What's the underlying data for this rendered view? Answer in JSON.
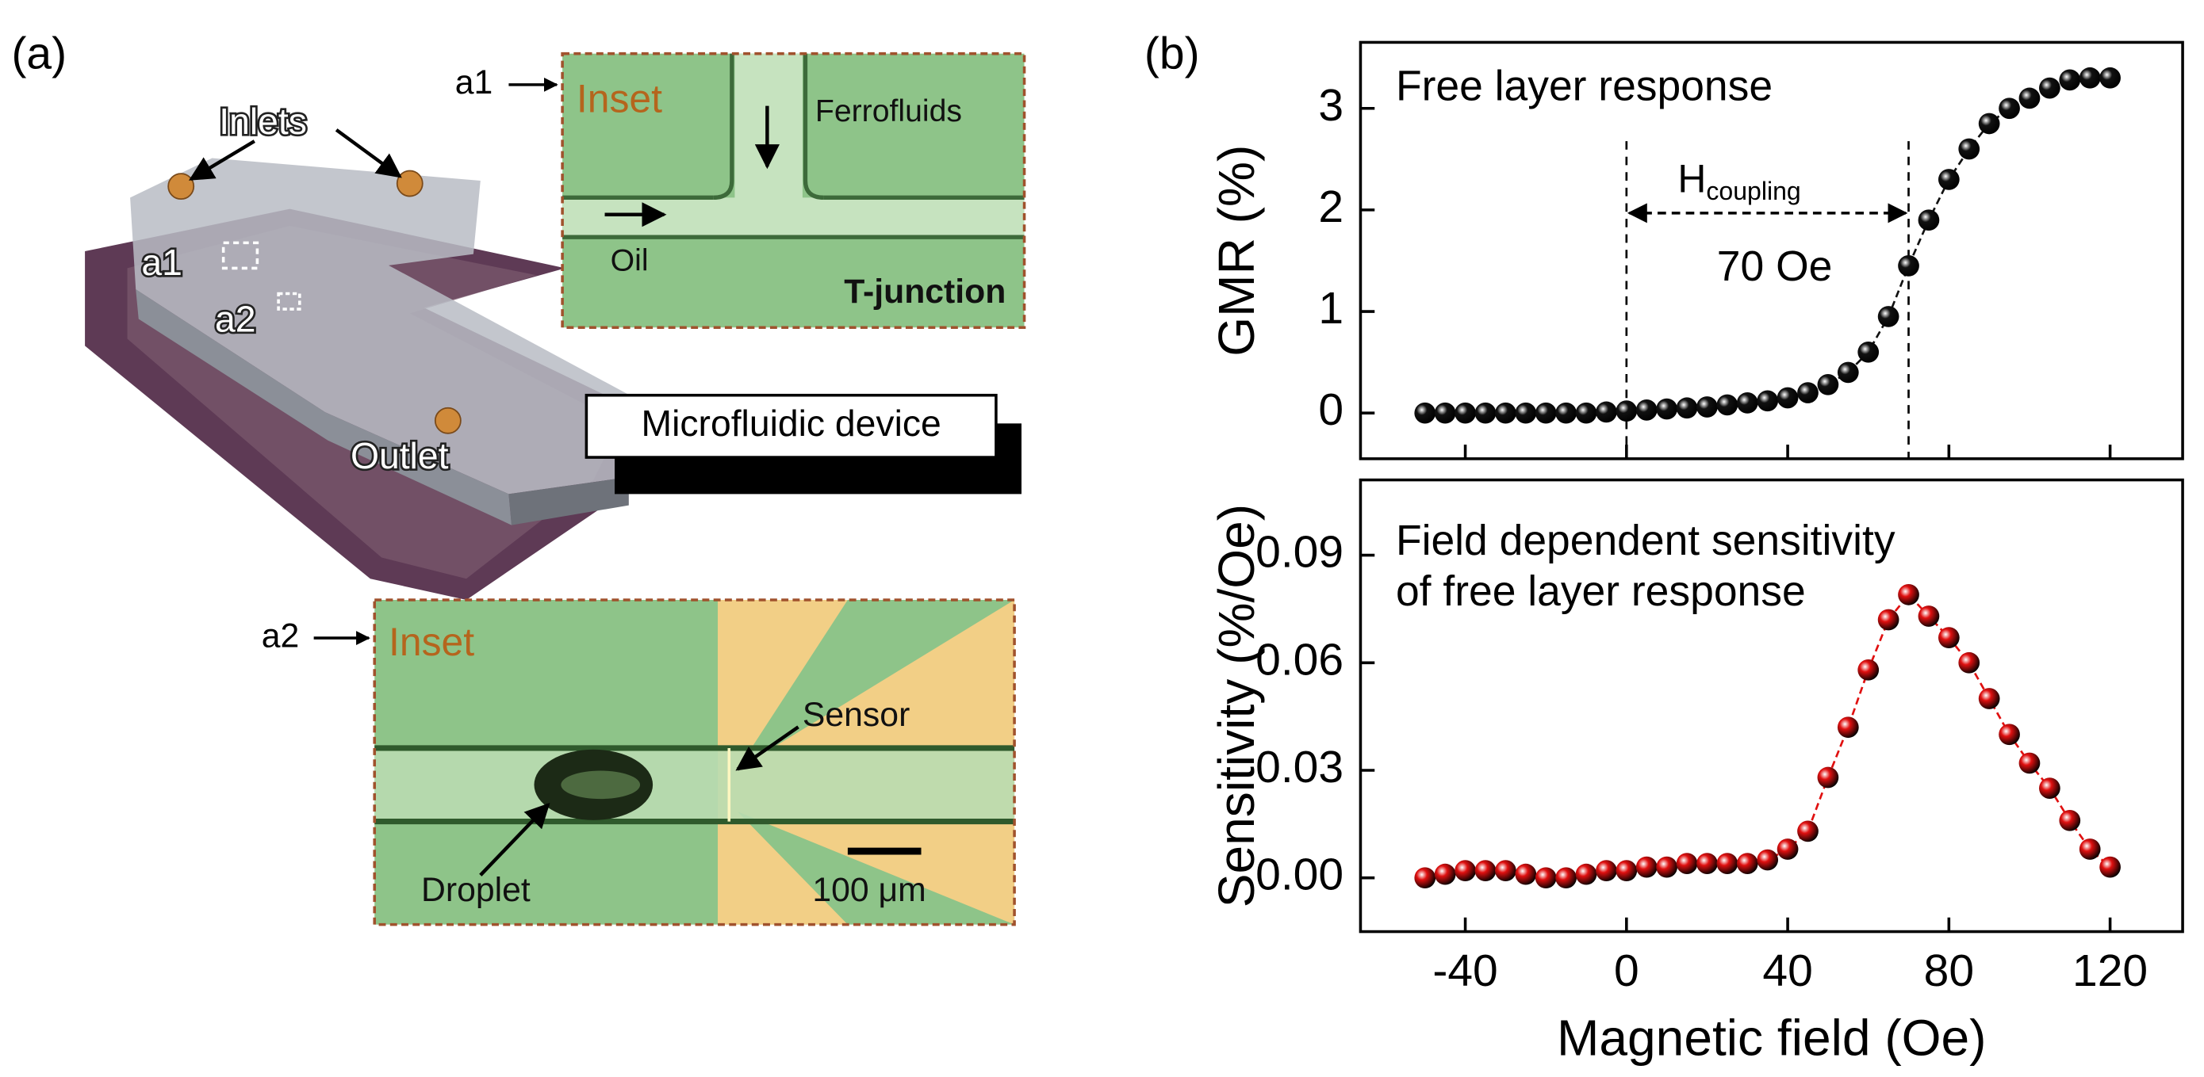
{
  "panel_a": {
    "label": "(a)",
    "photo_labels": {
      "inlets": "Inlets",
      "a1": "a1",
      "a2": "a2",
      "outlet": "Outlet"
    },
    "device_label": "Microfluidic device",
    "inset_a1": {
      "pointer": "a1",
      "title": "Inset",
      "ferrofluids": "Ferrofluids",
      "oil": "Oil",
      "junction": "T-junction"
    },
    "inset_a2": {
      "pointer": "a2",
      "title": "Inset",
      "sensor": "Sensor",
      "droplet": "Droplet",
      "scale": "100 μm"
    }
  },
  "panel_b_label": "(b)",
  "chart_data": [
    {
      "type": "line",
      "annotation": "Free layer response",
      "coupling": {
        "label": "H",
        "subscript": "coupling",
        "value_label": "70 Oe"
      },
      "vlines": [
        0,
        70
      ],
      "ylabel": "GMR (%)",
      "x": [
        -50,
        -45,
        -40,
        -35,
        -30,
        -25,
        -20,
        -15,
        -10,
        -5,
        0,
        5,
        10,
        15,
        20,
        25,
        30,
        35,
        40,
        45,
        50,
        55,
        60,
        65,
        70,
        75,
        80,
        85,
        90,
        95,
        100,
        105,
        110,
        115,
        120
      ],
      "values": [
        0,
        0,
        0,
        0,
        0,
        0,
        0,
        0,
        0,
        0.01,
        0.02,
        0.03,
        0.04,
        0.05,
        0.06,
        0.08,
        0.1,
        0.12,
        0.15,
        0.2,
        0.28,
        0.4,
        0.6,
        0.95,
        1.45,
        1.9,
        2.3,
        2.6,
        2.85,
        3.0,
        3.1,
        3.2,
        3.28,
        3.3,
        3.3
      ],
      "color": "#111111",
      "xlim": [
        -66,
        138
      ],
      "ylim": [
        -0.45,
        3.65
      ],
      "xticks": [
        -40,
        0,
        40,
        80,
        120
      ],
      "yticks": [
        0,
        1,
        2,
        3
      ],
      "show_xticklabels": false
    },
    {
      "type": "line",
      "annotation": [
        "Field dependent sensitivity",
        "of free layer response"
      ],
      "ylabel": "Sensitivity (%/Oe)",
      "xlabel": "Magnetic field (Oe)",
      "x": [
        -50,
        -45,
        -40,
        -35,
        -30,
        -25,
        -20,
        -15,
        -10,
        -5,
        0,
        5,
        10,
        15,
        20,
        25,
        30,
        35,
        40,
        45,
        50,
        55,
        60,
        65,
        70,
        75,
        80,
        85,
        90,
        95,
        100,
        105,
        110,
        115,
        120
      ],
      "values": [
        0,
        0.001,
        0.002,
        0.002,
        0.002,
        0.001,
        0,
        0,
        0.001,
        0.002,
        0.002,
        0.003,
        0.003,
        0.004,
        0.004,
        0.004,
        0.004,
        0.005,
        0.008,
        0.013,
        0.028,
        0.042,
        0.058,
        0.072,
        0.079,
        0.073,
        0.067,
        0.06,
        0.05,
        0.04,
        0.032,
        0.025,
        0.016,
        0.008,
        0.003
      ],
      "color": "#e01010",
      "xlim": [
        -66,
        138
      ],
      "ylim": [
        -0.015,
        0.111
      ],
      "xticks": [
        -40,
        0,
        40,
        80,
        120
      ],
      "yticks": [
        {
          "value": 0,
          "label": "0.00"
        },
        {
          "value": 0.03,
          "label": "0.03"
        },
        {
          "value": 0.06,
          "label": "0.06"
        },
        {
          "value": 0.09,
          "label": "0.09"
        }
      ]
    }
  ]
}
